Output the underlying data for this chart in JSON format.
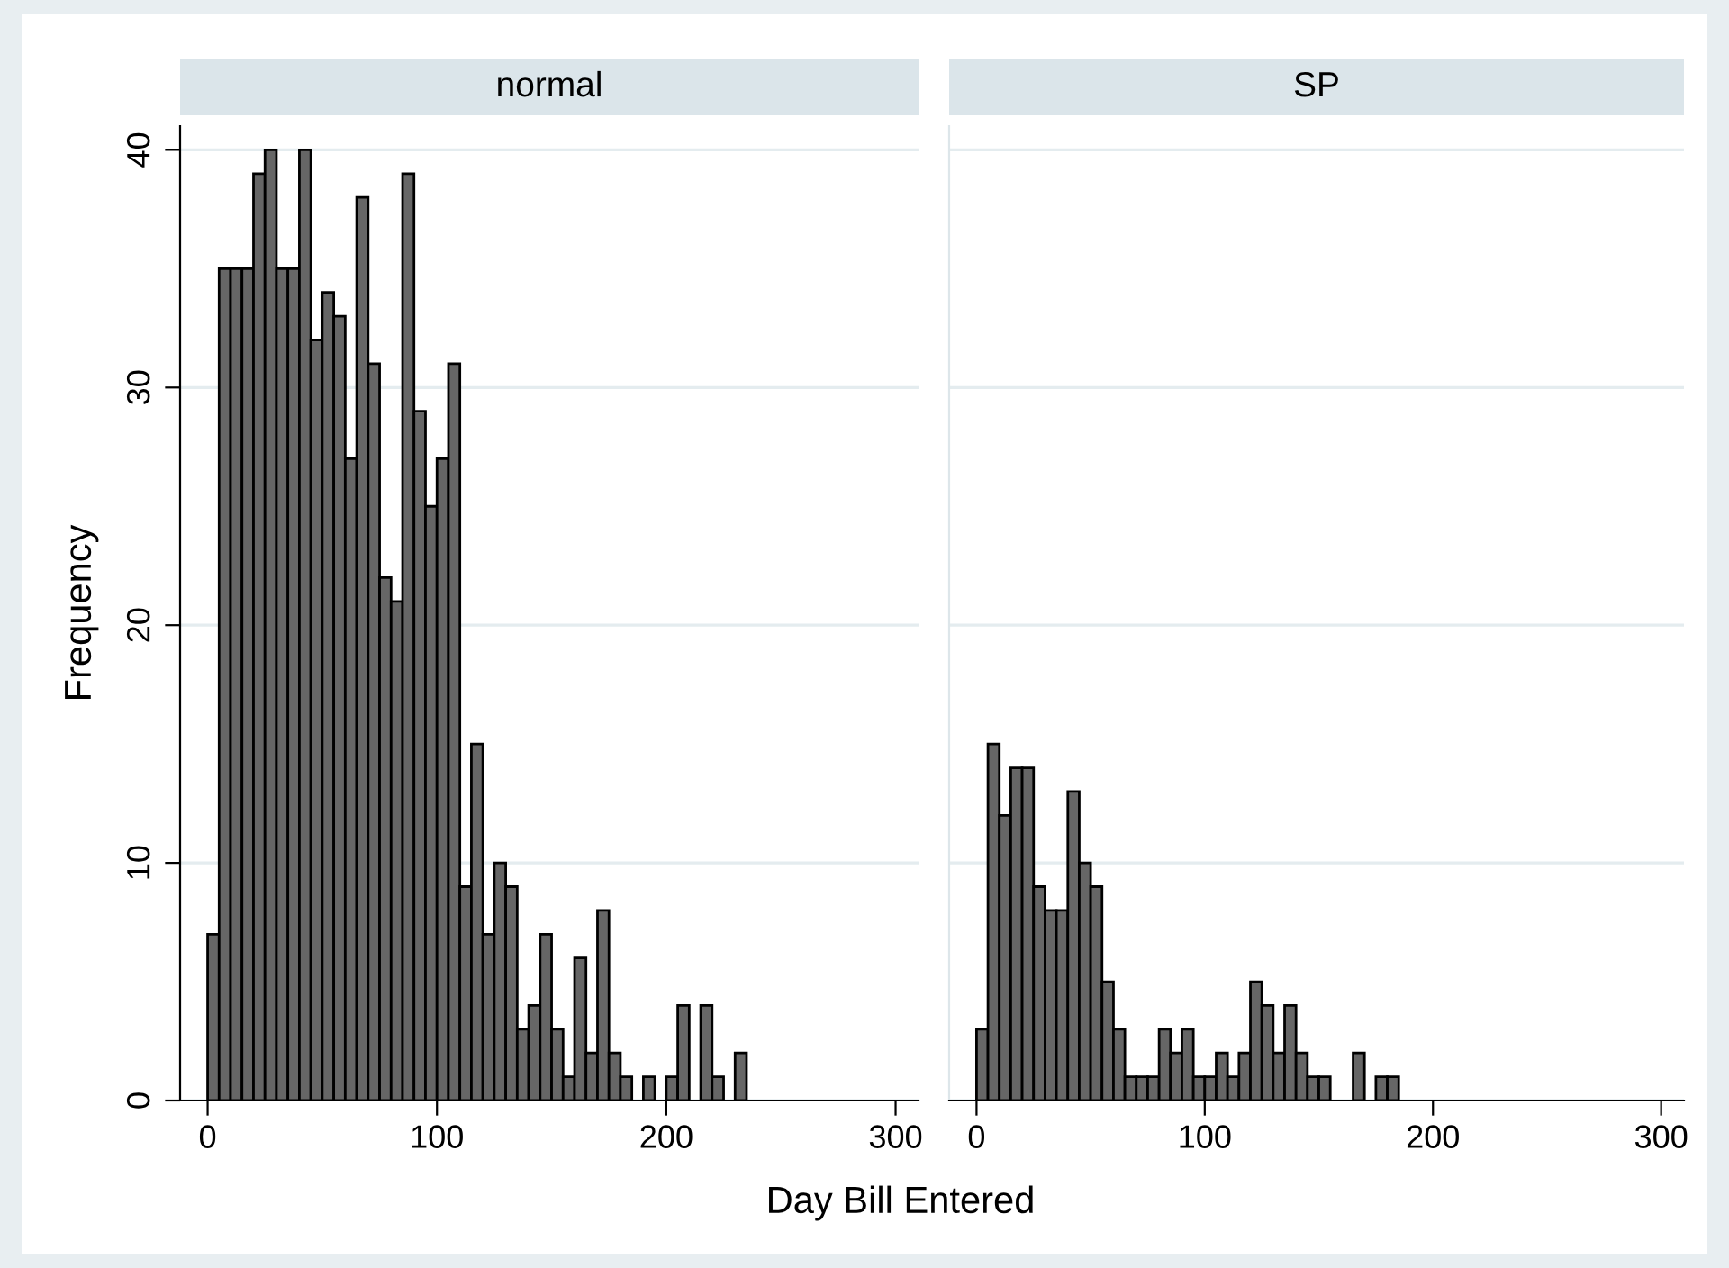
{
  "chart_data": [
    {
      "type": "histogram",
      "title": "normal",
      "xlabel": "Day Bill Entered",
      "ylabel": "Frequency",
      "bins": [
        0,
        5,
        10,
        15,
        20,
        25,
        30,
        35,
        40,
        45,
        50,
        55,
        60,
        65,
        70,
        75,
        80,
        85,
        90,
        95,
        100,
        105,
        110,
        115,
        120,
        125,
        130,
        135,
        140,
        145,
        150,
        155,
        160,
        165,
        170,
        175,
        180,
        185,
        190,
        195,
        200,
        205,
        210,
        215,
        220,
        225,
        230,
        235
      ],
      "values": [
        7,
        35,
        35,
        35,
        39,
        40,
        35,
        35,
        40,
        32,
        34,
        33,
        27,
        38,
        31,
        22,
        21,
        39,
        29,
        25,
        27,
        31,
        9,
        15,
        7,
        10,
        9,
        3,
        4,
        7,
        3,
        1,
        6,
        2,
        8,
        2,
        1,
        0,
        1,
        0,
        1,
        4,
        0,
        4,
        1,
        0,
        2
      ],
      "color": "#666666",
      "xlim": [
        -12,
        310
      ],
      "xticks": [
        0,
        100,
        200,
        300
      ],
      "ylim": [
        0,
        41
      ],
      "yticks": [
        0,
        10,
        20,
        30,
        40
      ],
      "grid": "y"
    },
    {
      "type": "histogram",
      "title": "SP",
      "bins": [
        0,
        5,
        10,
        15,
        20,
        25,
        30,
        35,
        40,
        45,
        50,
        55,
        60,
        65,
        70,
        75,
        80,
        85,
        90,
        95,
        100,
        105,
        110,
        115,
        120,
        125,
        130,
        135,
        140,
        145,
        150,
        155,
        160,
        165,
        170,
        175,
        180,
        185
      ],
      "values": [
        3,
        15,
        12,
        14,
        14,
        9,
        8,
        8,
        13,
        10,
        9,
        5,
        3,
        1,
        1,
        1,
        3,
        2,
        3,
        1,
        1,
        2,
        1,
        2,
        5,
        4,
        2,
        4,
        2,
        1,
        1,
        0,
        0,
        2,
        0,
        1,
        1
      ],
      "color": "#666666",
      "xlim": [
        -12,
        310
      ],
      "xticks": [
        0,
        100,
        200,
        300
      ],
      "ylim": [
        0,
        41
      ],
      "yticks": [
        0,
        10,
        20,
        30,
        40
      ],
      "grid": "y",
      "tick_labels": "x"
    }
  ]
}
